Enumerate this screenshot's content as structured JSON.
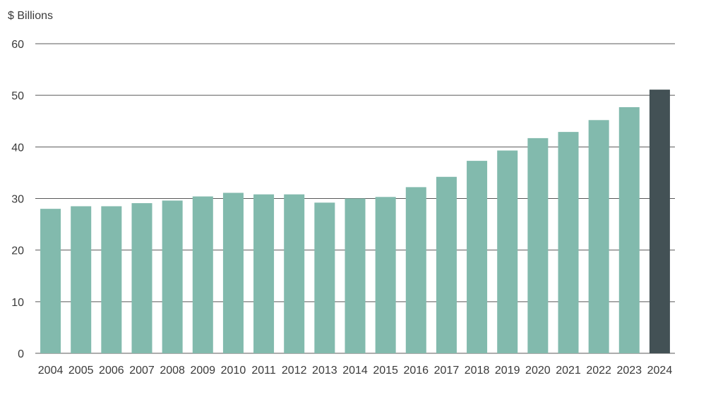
{
  "chart_data": {
    "type": "bar",
    "unit_label": "$ Billions",
    "categories": [
      "2004",
      "2005",
      "2006",
      "2007",
      "2008",
      "2009",
      "2010",
      "2011",
      "2012",
      "2013",
      "2014",
      "2015",
      "2016",
      "2017",
      "2018",
      "2019",
      "2020",
      "2021",
      "2022",
      "2023",
      "2024"
    ],
    "values": [
      28.0,
      28.5,
      28.5,
      29.1,
      29.6,
      30.4,
      31.1,
      30.8,
      30.8,
      29.2,
      30.0,
      30.3,
      32.2,
      34.2,
      37.3,
      39.3,
      41.7,
      42.9,
      45.2,
      47.7,
      51.1
    ],
    "ylim": [
      0,
      60
    ],
    "yticks": [
      0,
      10,
      20,
      30,
      40,
      50,
      60
    ],
    "grid": true,
    "colors": {
      "bar": "#82baad",
      "highlight": "#435155",
      "grid": "#595959",
      "text": "#3a3a3a"
    },
    "highlight_index": 20
  }
}
